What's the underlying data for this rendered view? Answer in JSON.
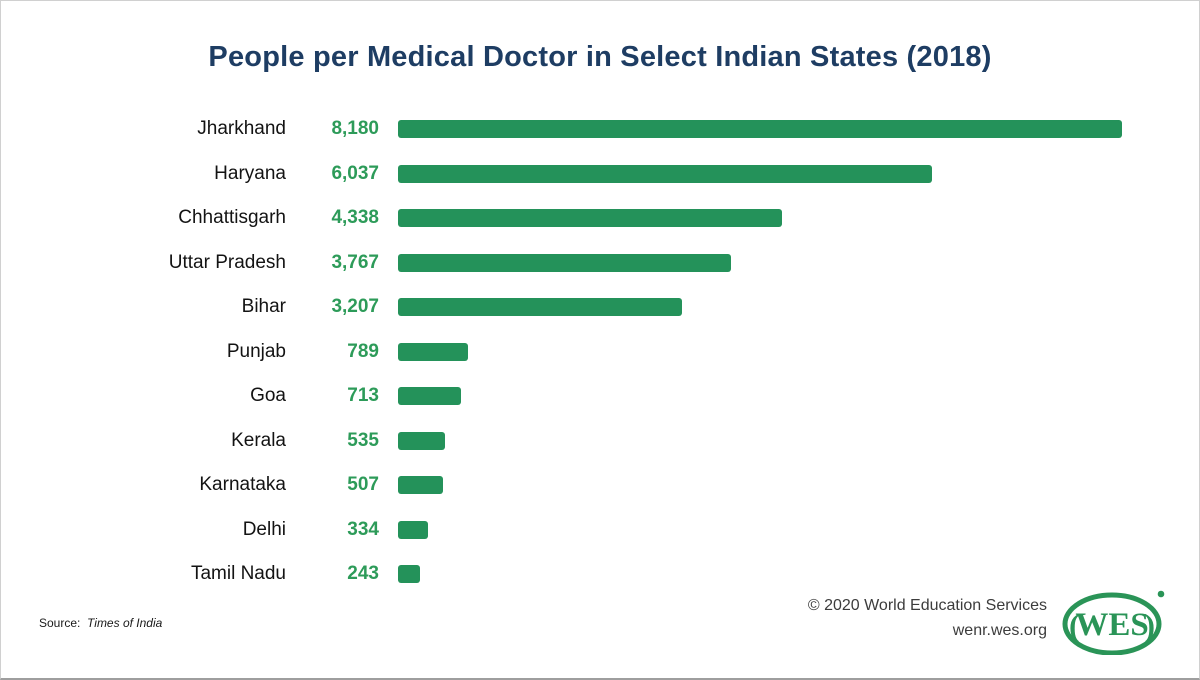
{
  "title": "People per Medical Doctor in Select Indian States (2018)",
  "chart_data": {
    "type": "bar",
    "orientation": "horizontal",
    "title": "People per Medical Doctor in Select Indian States (2018)",
    "categories": [
      "Jharkhand",
      "Haryana",
      "Chhattisgarh",
      "Uttar Pradesh",
      "Bihar",
      "Punjab",
      "Goa",
      "Kerala",
      "Karnataka",
      "Delhi",
      "Tamil Nadu"
    ],
    "values": [
      8180,
      6037,
      4338,
      3767,
      3207,
      789,
      713,
      535,
      507,
      334,
      243
    ],
    "value_labels": [
      "8,180",
      "6,037",
      "4,338",
      "3,767",
      "3,207",
      "789",
      "713",
      "535",
      "507",
      "334",
      "243"
    ],
    "xlabel": "",
    "ylabel": "",
    "xlim": [
      0,
      8180
    ],
    "grid": false,
    "legend": "none",
    "bar_color": "#24925A",
    "value_label_color": "#2D9B59",
    "title_color": "#1E3D63"
  },
  "footer": {
    "source_prefix": "Source:",
    "source_name": "Times of India",
    "copyright": "© 2020 World Education Services",
    "website": "wenr.wes.org",
    "logo_text": "WES",
    "logo_color": "#2A9457"
  }
}
